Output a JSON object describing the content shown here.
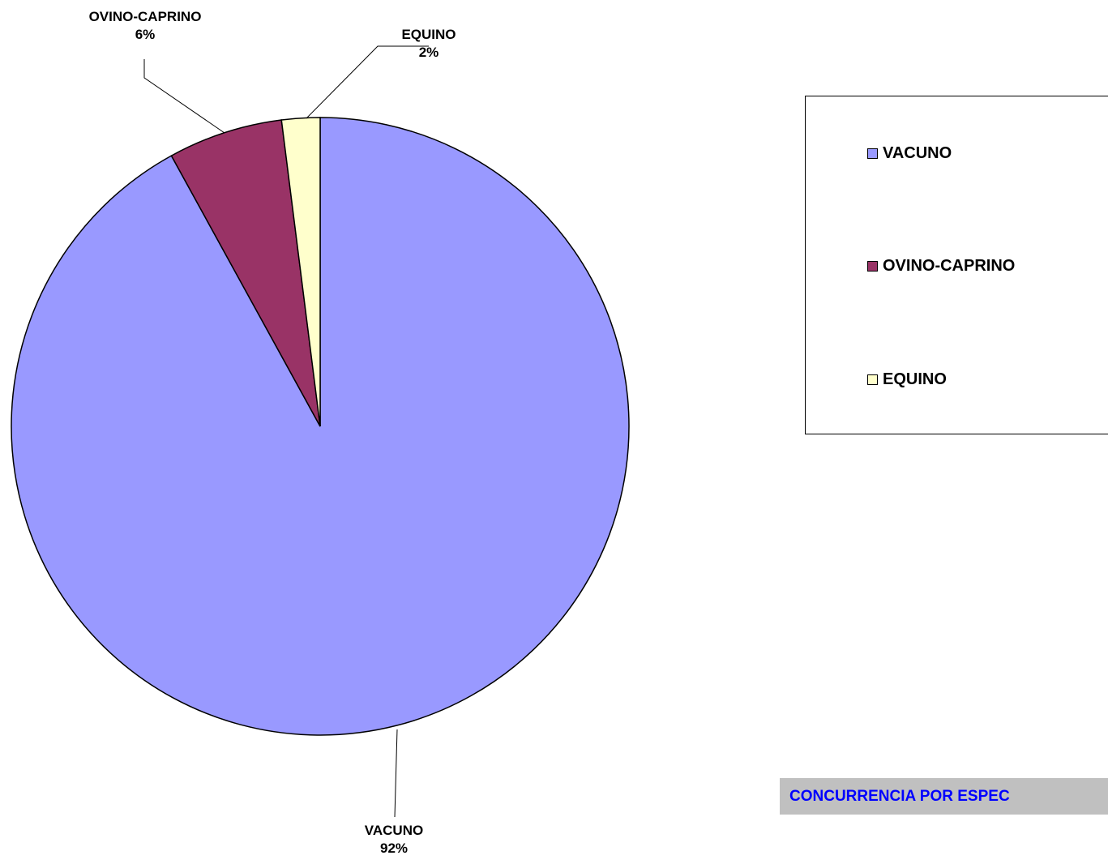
{
  "chart_data": {
    "type": "pie",
    "title": "CONCURRENCIA POR ESPEC",
    "categories": [
      "VACUNO",
      "OVINO-CAPRINO",
      "EQUINO"
    ],
    "values": [
      92,
      6,
      2
    ],
    "percent_labels": [
      "92%",
      "6%",
      "2%"
    ],
    "colors": [
      "#9999ff",
      "#993366",
      "#ffffcc"
    ],
    "legend": {
      "placement": "right",
      "entries": [
        "VACUNO",
        "OVINO-CAPRINO",
        "EQUINO"
      ]
    }
  }
}
